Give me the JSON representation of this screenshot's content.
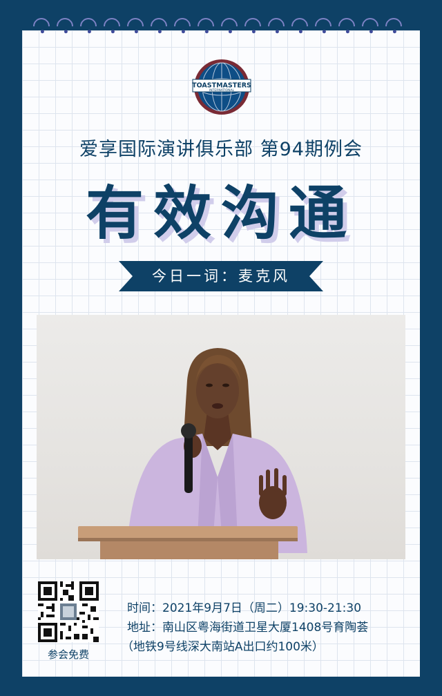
{
  "colors": {
    "navy": "#0e4166",
    "lavender": "#d1cdeb",
    "background": "#0e4166"
  },
  "logo": {
    "text": "TOASTMASTERS",
    "subtext": "INTERNATIONAL"
  },
  "club_title": "爱享国际演讲俱乐部 第94期例会",
  "main_title": "有效沟通",
  "word_of_day": "今日一词：麦克风",
  "qr_label": "参会免费",
  "info": {
    "time": "时间：2021年9月7日（周二）19:30-21:30",
    "address": "地址：南山区粤海街道卫星大厦1408号育陶荟",
    "directions": "（地铁9号线深大南站A出口约100米）"
  }
}
